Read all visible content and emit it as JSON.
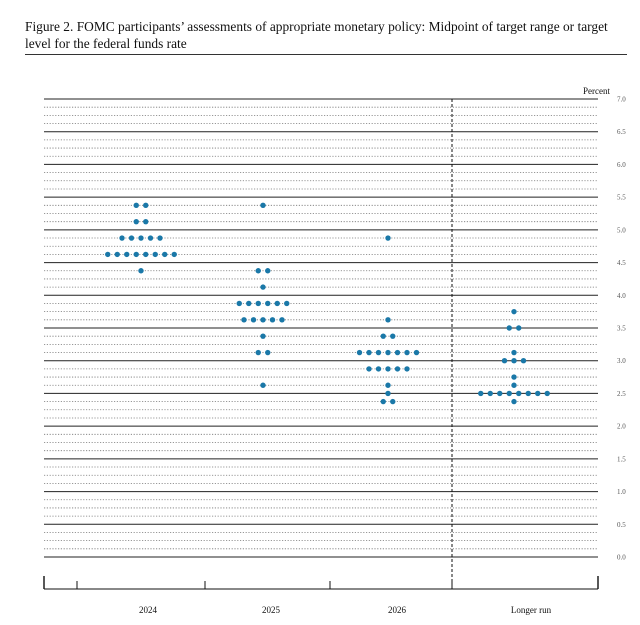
{
  "figure": {
    "title": "Figure 2.  FOMC participants’ assessments of appropriate monetary policy:  Midpoint of target range or target level for the federal funds rate"
  },
  "chart_data": {
    "type": "scatter",
    "title": "Figure 2.  FOMC participants’ assessments of appropriate monetary policy:  Midpoint of target range or target level for the federal funds rate",
    "ylabel": "Percent",
    "xlabel": "",
    "ylim": [
      0,
      7
    ],
    "yticks": [
      "0.0",
      "0.5",
      "1.0",
      "1.5",
      "2.0",
      "2.5",
      "3.0",
      "3.5",
      "4.0",
      "4.5",
      "5.0",
      "5.5",
      "6.0",
      "6.5",
      "7.0"
    ],
    "categories": [
      "2024",
      "2025",
      "2026",
      "Longer run"
    ],
    "dot_color": "#1a78a8",
    "grid": true,
    "separator_before": "Longer run",
    "columns": [
      {
        "category": "2024",
        "points": [
          {
            "y": 5.375,
            "count": 2
          },
          {
            "y": 5.125,
            "count": 2
          },
          {
            "y": 4.875,
            "count": 5
          },
          {
            "y": 4.625,
            "count": 8
          },
          {
            "y": 4.375,
            "count": 1
          }
        ]
      },
      {
        "category": "2025",
        "points": [
          {
            "y": 5.375,
            "count": 1
          },
          {
            "y": 4.375,
            "count": 2
          },
          {
            "y": 4.125,
            "count": 1
          },
          {
            "y": 3.875,
            "count": 6
          },
          {
            "y": 3.625,
            "count": 5
          },
          {
            "y": 3.375,
            "count": 1
          },
          {
            "y": 3.125,
            "count": 2
          },
          {
            "y": 2.625,
            "count": 1
          }
        ]
      },
      {
        "category": "2026",
        "points": [
          {
            "y": 4.875,
            "count": 1
          },
          {
            "y": 3.625,
            "count": 1
          },
          {
            "y": 3.375,
            "count": 2
          },
          {
            "y": 3.125,
            "count": 7
          },
          {
            "y": 2.875,
            "count": 5
          },
          {
            "y": 2.625,
            "count": 1
          },
          {
            "y": 2.5,
            "count": 1
          },
          {
            "y": 2.375,
            "count": 2
          }
        ]
      },
      {
        "category": "Longer run",
        "points": [
          {
            "y": 3.75,
            "count": 1
          },
          {
            "y": 3.5,
            "count": 2
          },
          {
            "y": 3.125,
            "count": 1
          },
          {
            "y": 3.0,
            "count": 3
          },
          {
            "y": 2.75,
            "count": 1
          },
          {
            "y": 2.625,
            "count": 1
          },
          {
            "y": 2.5,
            "count": 8
          },
          {
            "y": 2.375,
            "count": 1
          }
        ]
      }
    ]
  }
}
